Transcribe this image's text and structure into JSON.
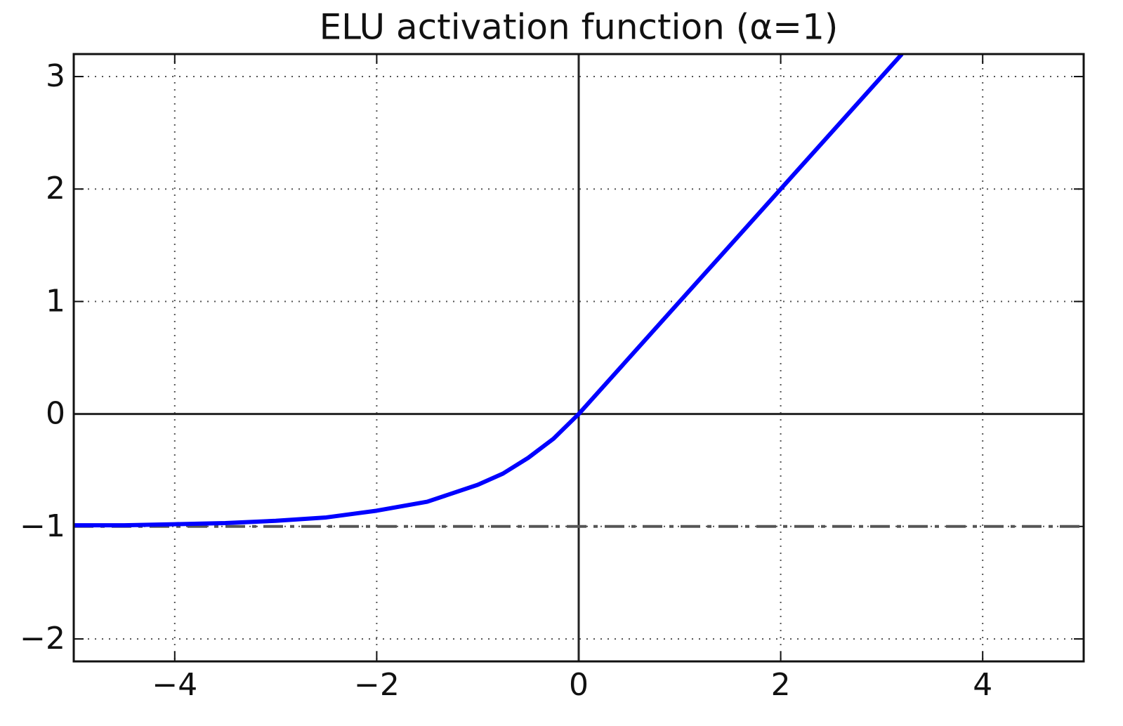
{
  "chart_data": {
    "type": "line",
    "title": "ELU activation function (α=1)",
    "x": [
      -5,
      -4.5,
      -4,
      -3.5,
      -3,
      -2.5,
      -2,
      -1.5,
      -1,
      -0.75,
      -0.5,
      -0.25,
      0,
      1,
      2,
      3.2
    ],
    "series": [
      {
        "color": "#0000ff",
        "values": [
          -0.99,
          -0.99,
          -0.98,
          -0.97,
          -0.95,
          -0.92,
          -0.86,
          -0.78,
          -0.63,
          -0.53,
          -0.39,
          -0.22,
          0,
          1,
          2,
          3.2
        ]
      }
    ],
    "xlim": [
      -5,
      5
    ],
    "ylim": [
      -2.2,
      3.2
    ],
    "xticks": [
      {
        "value": -4,
        "label": "−4"
      },
      {
        "value": -2,
        "label": "−2"
      },
      0,
      2,
      4
    ],
    "yticks": [
      {
        "value": -2,
        "label": "−2"
      },
      {
        "value": -1,
        "label": "−1"
      },
      0,
      1,
      2,
      3
    ],
    "grid": true,
    "axis_lines": {
      "x": 0,
      "y": 0
    },
    "reference_line": {
      "y": -1,
      "color": "#555555"
    }
  }
}
